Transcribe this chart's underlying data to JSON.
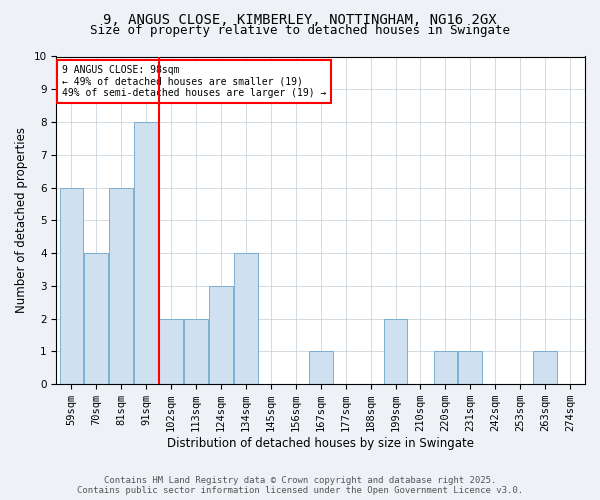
{
  "title1": "9, ANGUS CLOSE, KIMBERLEY, NOTTINGHAM, NG16 2GX",
  "title2": "Size of property relative to detached houses in Swingate",
  "xlabel": "Distribution of detached houses by size in Swingate",
  "ylabel": "Number of detached properties",
  "annotation_line1": "9 ANGUS CLOSE: 98sqm",
  "annotation_line2": "← 49% of detached houses are smaller (19)",
  "annotation_line3": "49% of semi-detached houses are larger (19) →",
  "bins": [
    "59sqm",
    "70sqm",
    "81sqm",
    "91sqm",
    "102sqm",
    "113sqm",
    "124sqm",
    "134sqm",
    "145sqm",
    "156sqm",
    "167sqm",
    "177sqm",
    "188sqm",
    "199sqm",
    "210sqm",
    "220sqm",
    "231sqm",
    "242sqm",
    "253sqm",
    "263sqm",
    "274sqm"
  ],
  "heights": [
    6,
    4,
    6,
    8,
    2,
    2,
    3,
    4,
    0,
    0,
    1,
    0,
    0,
    2,
    0,
    1,
    1,
    0,
    0,
    1,
    0
  ],
  "bar_color": "#cfe0f0",
  "bar_edge_color": "#7aaed0",
  "red_line_x": 3.5,
  "ylim": [
    0,
    10
  ],
  "yticks": [
    0,
    1,
    2,
    3,
    4,
    5,
    6,
    7,
    8,
    9,
    10
  ],
  "footer1": "Contains HM Land Registry data © Crown copyright and database right 2025.",
  "footer2": "Contains public sector information licensed under the Open Government Licence v3.0.",
  "background_color": "#eef2f7",
  "plot_background": "#ffffff",
  "title_fontsize": 10,
  "subtitle_fontsize": 9,
  "axis_label_fontsize": 8.5,
  "tick_fontsize": 7.5,
  "footer_fontsize": 6.5
}
